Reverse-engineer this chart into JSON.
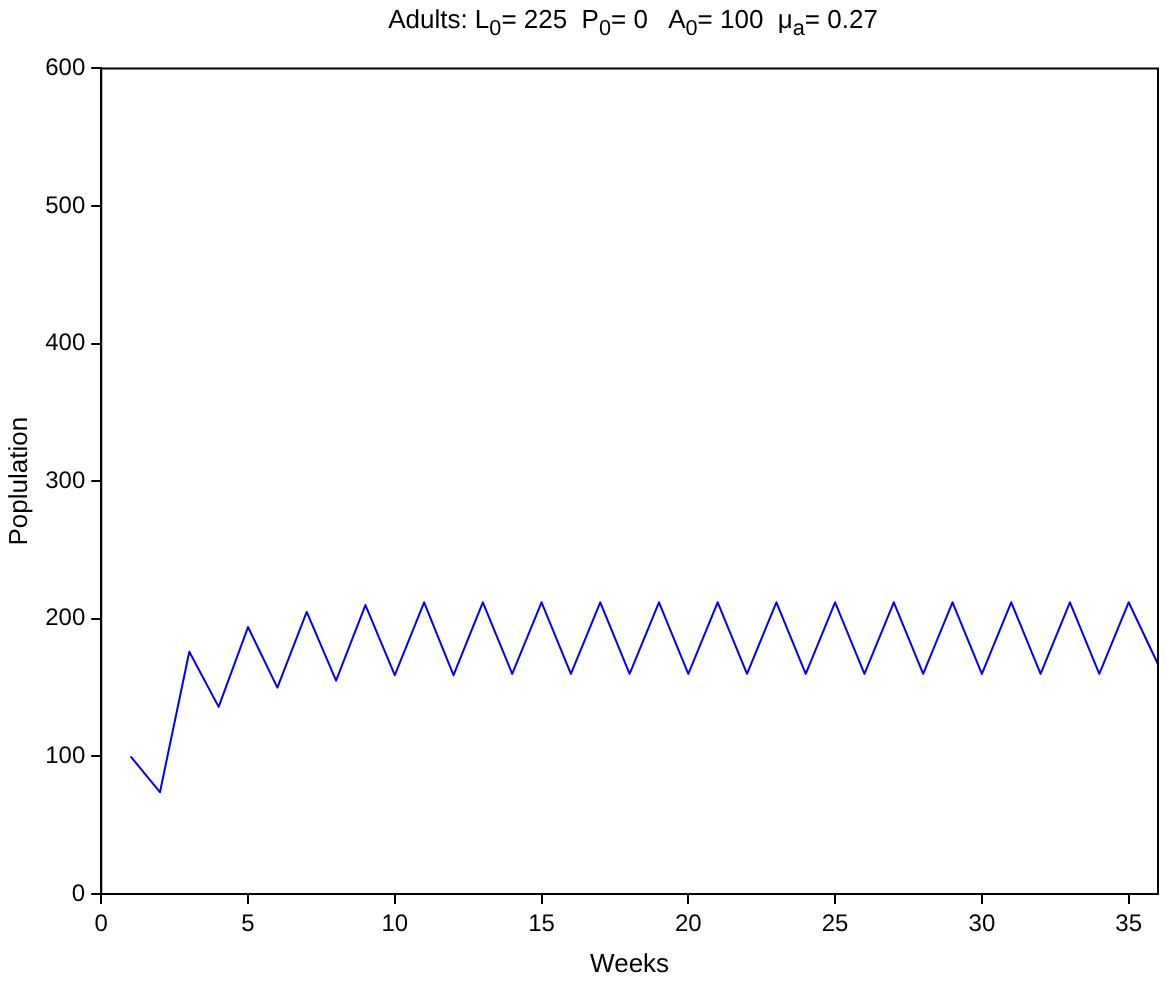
{
  "chart_data": {
    "type": "line",
    "title": "Adults: L$_{0}$= 225  P$_{0}$= 0   A$_{0}$= 100  μ$_{a}$= 0.27",
    "xlabel": "Weeks",
    "ylabel": "Poplulation",
    "x": [
      1,
      2,
      3,
      4,
      5,
      6,
      7,
      8,
      9,
      10,
      11,
      12,
      13,
      14,
      15,
      16,
      17,
      18,
      19,
      20,
      21,
      22,
      23,
      24,
      25,
      26,
      27,
      28,
      29,
      30,
      31,
      32,
      33,
      34,
      35,
      36
    ],
    "series": [
      {
        "color": "#0000ff",
        "values": [
          100,
          74,
          176,
          136,
          194,
          150,
          205,
          155,
          210,
          159,
          212,
          159,
          212,
          160,
          212,
          160,
          212,
          160,
          212,
          160,
          212,
          160,
          212,
          160,
          212,
          160,
          212,
          160,
          212,
          160,
          212,
          160,
          212,
          160,
          212,
          167
        ]
      }
    ],
    "xlim": [
      0,
      36
    ],
    "xticks": [
      0,
      5,
      10,
      15,
      20,
      25,
      30,
      35
    ],
    "ylim": [
      0,
      600
    ],
    "yticks": [
      0,
      100,
      200,
      300,
      400,
      500,
      600
    ],
    "grid": false,
    "legend": false,
    "marker": "none",
    "line_style": "solid"
  }
}
